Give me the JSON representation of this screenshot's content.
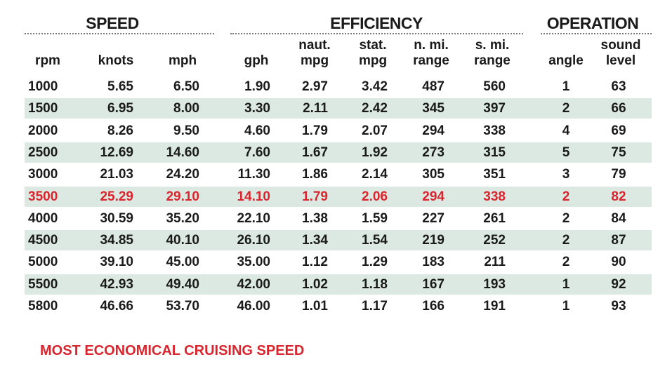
{
  "groups": [
    {
      "label": "SPEED"
    },
    {
      "label": "EFFICIENCY"
    },
    {
      "label": "OPERATION"
    }
  ],
  "columns": [
    [
      "rpm"
    ],
    [
      "knots"
    ],
    [
      "mph"
    ],
    [
      "gph"
    ],
    [
      "naut.",
      "mpg"
    ],
    [
      "stat.",
      "mpg"
    ],
    [
      "n. mi.",
      "range"
    ],
    [
      "s. mi.",
      "range"
    ],
    [
      "angle"
    ],
    [
      "sound",
      "level"
    ]
  ],
  "rows": [
    [
      "1000",
      "5.65",
      "6.50",
      "1.90",
      "2.97",
      "3.42",
      "487",
      "560",
      "1",
      "63"
    ],
    [
      "1500",
      "6.95",
      "8.00",
      "3.30",
      "2.11",
      "2.42",
      "345",
      "397",
      "2",
      "66"
    ],
    [
      "2000",
      "8.26",
      "9.50",
      "4.60",
      "1.79",
      "2.07",
      "294",
      "338",
      "4",
      "69"
    ],
    [
      "2500",
      "12.69",
      "14.60",
      "7.60",
      "1.67",
      "1.92",
      "273",
      "315",
      "5",
      "75"
    ],
    [
      "3000",
      "21.03",
      "24.20",
      "11.30",
      "1.86",
      "2.14",
      "305",
      "351",
      "3",
      "79"
    ],
    [
      "3500",
      "25.29",
      "29.10",
      "14.10",
      "1.79",
      "2.06",
      "294",
      "338",
      "2",
      "82"
    ],
    [
      "4000",
      "30.59",
      "35.20",
      "22.10",
      "1.38",
      "1.59",
      "227",
      "261",
      "2",
      "84"
    ],
    [
      "4500",
      "34.85",
      "40.10",
      "26.10",
      "1.34",
      "1.54",
      "219",
      "252",
      "2",
      "87"
    ],
    [
      "5000",
      "39.10",
      "45.00",
      "35.00",
      "1.12",
      "1.29",
      "183",
      "211",
      "2",
      "90"
    ],
    [
      "5500",
      "42.93",
      "49.40",
      "42.00",
      "1.02",
      "1.18",
      "167",
      "193",
      "1",
      "92"
    ],
    [
      "5800",
      "46.66",
      "53.70",
      "46.00",
      "1.01",
      "1.17",
      "166",
      "191",
      "1",
      "93"
    ]
  ],
  "highlight": {
    "row": 5,
    "color": "#d9262e"
  },
  "stripe_color": "#dce9e3",
  "footnote": {
    "text": "MOST ECONOMICAL CRUISING SPEED",
    "color": "#d9262e"
  }
}
